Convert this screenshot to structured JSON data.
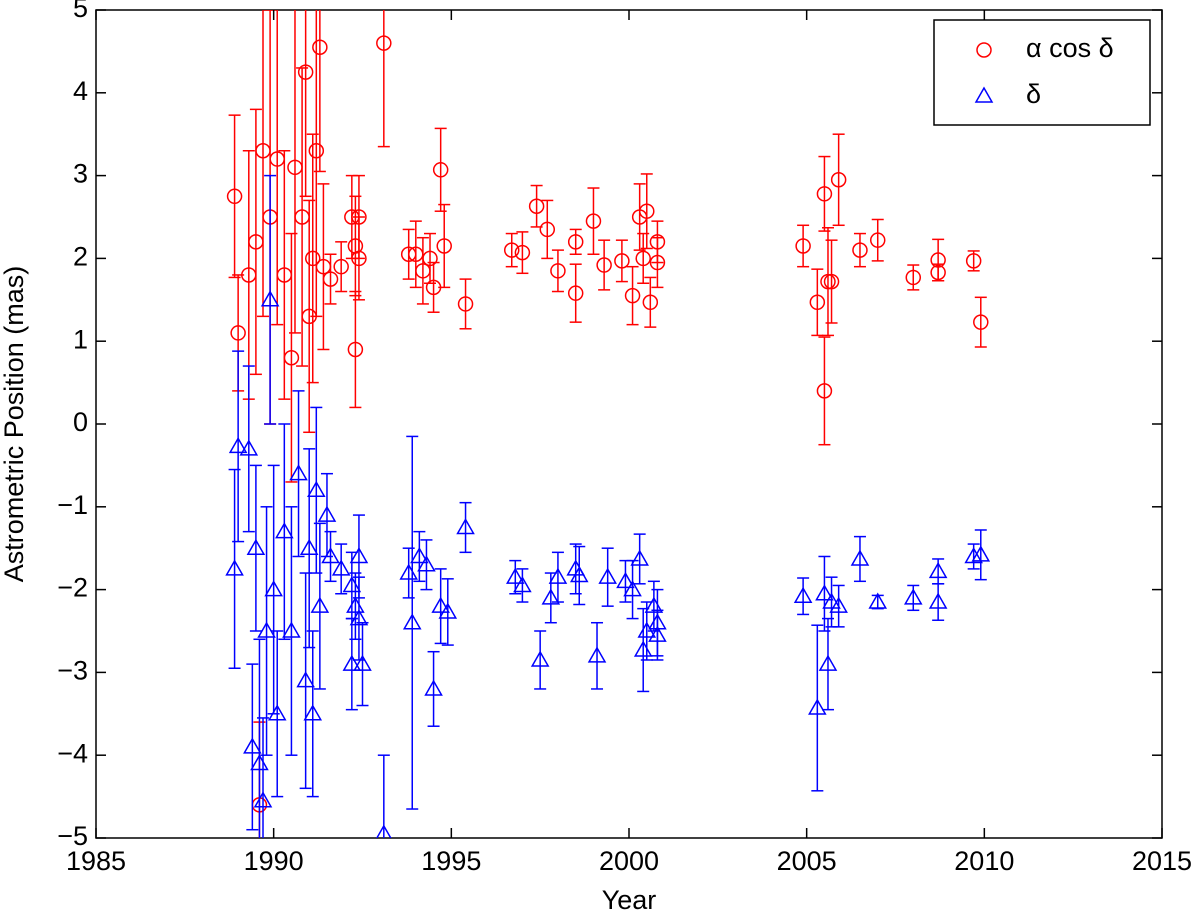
{
  "chart_data": {
    "type": "scatter",
    "xlabel": "Year",
    "ylabel": "Astrometric Position (mas)",
    "xlim": [
      1985,
      2015
    ],
    "xticks": [
      1985,
      1990,
      1995,
      2000,
      2005,
      2010,
      2015
    ],
    "ylim": [
      -5,
      5
    ],
    "yticks": [
      {
        "value": -5,
        "label": "−5"
      },
      {
        "value": -4,
        "label": "−4"
      },
      {
        "value": -3,
        "label": "−3"
      },
      {
        "value": -2,
        "label": "−2"
      },
      {
        "value": -1,
        "label": "−1"
      },
      0,
      1,
      2,
      3,
      4,
      5
    ],
    "legend": "upper right",
    "series": [
      {
        "name": "α cos δ",
        "color": "#ff0000",
        "marker": "circle",
        "x": [
          1988.9,
          1989.0,
          1989.3,
          1989.5,
          1989.6,
          1989.7,
          1989.9,
          1990.1,
          1990.3,
          1990.5,
          1990.6,
          1990.8,
          1990.9,
          1991.0,
          1991.1,
          1991.2,
          1991.3,
          1991.4,
          1991.6,
          1991.9,
          1992.2,
          1992.3,
          1992.3,
          1992.4,
          1992.4,
          1993.1,
          1993.8,
          1994.0,
          1994.2,
          1994.4,
          1994.5,
          1994.7,
          1994.8,
          1995.4,
          1996.7,
          1997.0,
          1997.4,
          1997.7,
          1998.0,
          1998.5,
          1998.5,
          1999.0,
          1999.3,
          1999.8,
          2000.1,
          2000.3,
          2000.4,
          2000.5,
          2000.6,
          2000.8,
          2000.8,
          2004.9,
          2005.3,
          2005.5,
          2005.5,
          2005.6,
          2005.7,
          2005.9,
          2006.5,
          2007.0,
          2008.0,
          2008.7,
          2008.7,
          2009.7,
          2009.9
        ],
        "values": [
          2.75,
          1.1,
          1.8,
          2.2,
          -4.6,
          3.3,
          2.5,
          3.2,
          1.8,
          0.8,
          3.1,
          2.5,
          4.25,
          1.3,
          2.0,
          3.3,
          4.55,
          1.9,
          1.75,
          1.9,
          2.5,
          0.9,
          2.15,
          2.5,
          2.0,
          4.6,
          2.05,
          2.05,
          1.85,
          2.0,
          1.65,
          3.07,
          2.15,
          1.45,
          2.1,
          2.07,
          2.63,
          2.35,
          1.85,
          2.2,
          1.58,
          2.45,
          1.92,
          1.97,
          1.55,
          2.5,
          2.0,
          2.57,
          1.47,
          2.2,
          1.95,
          2.15,
          1.47,
          2.78,
          0.4,
          1.72,
          1.72,
          2.95,
          2.1,
          2.22,
          1.77,
          1.98,
          1.83,
          1.97,
          1.23
        ],
        "errors": [
          0.98,
          0.7,
          1.5,
          1.6,
          1.0,
          2.0,
          2.5,
          2.0,
          1.5,
          1.5,
          2.0,
          1.8,
          1.5,
          1.4,
          1.5,
          2.0,
          1.5,
          1.0,
          0.3,
          0.3,
          0.5,
          0.7,
          0.6,
          0.5,
          0.5,
          1.25,
          0.3,
          0.4,
          0.4,
          0.3,
          0.3,
          0.5,
          0.5,
          0.3,
          0.2,
          0.25,
          0.25,
          0.35,
          0.25,
          0.15,
          0.35,
          0.4,
          0.3,
          0.25,
          0.35,
          0.4,
          0.3,
          0.45,
          0.3,
          0.25,
          0.3,
          0.25,
          0.4,
          0.45,
          0.65,
          0.65,
          0.5,
          0.55,
          0.2,
          0.25,
          0.15,
          0.25,
          0.1,
          0.12,
          0.3
        ]
      },
      {
        "name": "δ",
        "color": "#0000ff",
        "marker": "triangle",
        "x": [
          1988.9,
          1989.0,
          1989.3,
          1989.4,
          1989.5,
          1989.6,
          1989.7,
          1989.8,
          1989.9,
          1990.0,
          1990.1,
          1990.3,
          1990.5,
          1990.7,
          1990.9,
          1991.0,
          1991.1,
          1991.2,
          1991.3,
          1991.5,
          1991.6,
          1991.9,
          1992.2,
          1992.2,
          1992.3,
          1992.4,
          1992.4,
          1992.5,
          1993.1,
          1993.8,
          1993.9,
          1994.1,
          1994.3,
          1994.5,
          1994.7,
          1994.9,
          1995.4,
          1996.8,
          1997.0,
          1997.5,
          1997.8,
          1998.0,
          1998.5,
          1998.6,
          1999.1,
          1999.4,
          1999.9,
          2000.1,
          2000.3,
          2000.4,
          2000.5,
          2000.7,
          2000.8,
          2000.8,
          2004.9,
          2005.3,
          2005.5,
          2005.6,
          2005.7,
          2005.9,
          2006.5,
          2007.0,
          2008.0,
          2008.7,
          2008.7,
          2009.7,
          2009.9
        ],
        "values": [
          -1.75,
          -0.27,
          -0.3,
          -3.9,
          -1.5,
          -4.1,
          -4.55,
          -2.5,
          1.5,
          -2.0,
          -3.5,
          -1.3,
          -2.5,
          -0.6,
          -3.1,
          -1.5,
          -3.5,
          -0.8,
          -2.2,
          -1.1,
          -1.6,
          -1.75,
          -1.95,
          -2.9,
          -2.2,
          -1.6,
          -2.35,
          -2.9,
          -4.95,
          -1.8,
          -2.4,
          -1.6,
          -1.7,
          -3.2,
          -2.2,
          -2.27,
          -1.25,
          -1.85,
          -1.95,
          -2.85,
          -2.1,
          -1.85,
          -1.75,
          -1.83,
          -2.8,
          -1.85,
          -1.9,
          -2.0,
          -1.63,
          -2.73,
          -2.5,
          -2.2,
          -2.55,
          -2.4,
          -2.08,
          -3.43,
          -2.05,
          -2.9,
          -2.15,
          -2.2,
          -1.63,
          -2.15,
          -2.1,
          -1.78,
          -2.15,
          -1.6,
          -1.58
        ],
        "errors": [
          1.2,
          1.15,
          1.0,
          1.0,
          1.0,
          1.5,
          1.0,
          1.5,
          1.5,
          1.5,
          1.0,
          1.3,
          1.5,
          1.0,
          1.3,
          1.2,
          1.0,
          1.0,
          1.0,
          0.5,
          0.3,
          0.3,
          0.4,
          0.55,
          0.4,
          0.5,
          0.5,
          0.5,
          0.95,
          0.3,
          2.25,
          0.3,
          0.3,
          0.45,
          0.45,
          0.4,
          0.3,
          0.2,
          0.2,
          0.35,
          0.3,
          0.3,
          0.3,
          0.35,
          0.4,
          0.35,
          0.25,
          0.35,
          0.3,
          0.5,
          0.35,
          0.3,
          0.3,
          0.4,
          0.22,
          1.0,
          0.45,
          0.55,
          0.3,
          0.25,
          0.27,
          0.08,
          0.15,
          0.15,
          0.22,
          0.15,
          0.3
        ]
      }
    ]
  }
}
